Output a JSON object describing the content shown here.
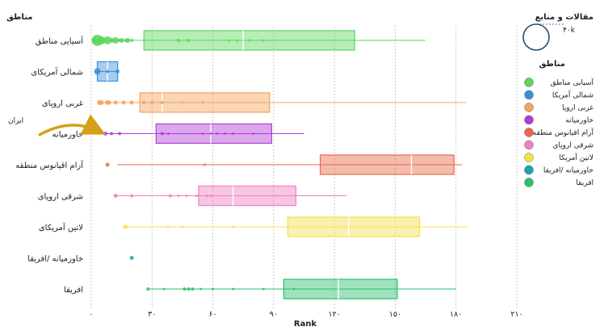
{
  "chart_data": {
    "type": "box",
    "title": "",
    "ylabel": "مناطق",
    "xlabel": "Rank",
    "xlim": [
      0,
      210
    ],
    "x_ticks": [
      0,
      30,
      60,
      90,
      120,
      150,
      180,
      210
    ],
    "x_tick_labels": [
      "۰",
      "۳۰",
      "۶۰",
      "۹۰",
      "۱۲۰",
      "۱۵۰",
      "۱۸۰",
      "۲۱۰"
    ],
    "grid": "vertical-dotted",
    "size_legend": {
      "title": "مقالات و منابع",
      "label": "۴۰k"
    },
    "color_legend": {
      "title": "مناطق",
      "placement": "right"
    },
    "annotation": {
      "text": "ایران",
      "arrow_color": "#d4a017",
      "target_region": "خاورمیانه",
      "target_rank": 7
    },
    "regions": [
      {
        "name": "آسیایی مناطق",
        "legend": "آسیایی مناطق",
        "color": "#5cd65c",
        "whisker_low": 1,
        "q1": 26,
        "median": 75,
        "q3": 130,
        "whisker_high": 165,
        "points": [
          [
            3,
            7
          ],
          [
            5,
            5
          ],
          [
            2,
            4
          ],
          [
            8,
            5
          ],
          [
            12,
            4
          ],
          [
            15,
            3
          ],
          [
            18,
            3
          ],
          [
            4,
            3
          ],
          [
            6,
            3
          ],
          [
            10,
            3
          ],
          [
            14,
            2
          ],
          [
            17,
            2
          ],
          [
            20,
            2
          ],
          [
            43,
            2
          ],
          [
            48,
            2
          ],
          [
            68,
            1.5
          ],
          [
            72,
            1.5
          ],
          [
            78,
            1.5
          ],
          [
            85,
            1.5
          ]
        ]
      },
      {
        "name": "شمالی آمریکای",
        "legend": "شمالی آمریکا",
        "color": "#3a8fd9",
        "whisker_low": 2,
        "q1": 3,
        "median": 8,
        "q3": 13,
        "whisker_high": 13,
        "points": [
          [
            3,
            4
          ],
          [
            13,
            2.5
          ],
          [
            8,
            2
          ]
        ]
      },
      {
        "name": "غربی اروپای",
        "legend": "غربی اروپا",
        "color": "#f5a25d",
        "whisker_low": 4,
        "q1": 24,
        "median": 35,
        "q3": 88,
        "whisker_high": 185,
        "points": [
          [
            5,
            3
          ],
          [
            8,
            3
          ],
          [
            12,
            2.5
          ],
          [
            16,
            2.5
          ],
          [
            20,
            2.5
          ],
          [
            4,
            3
          ],
          [
            9,
            2
          ],
          [
            26,
            2
          ],
          [
            30,
            2
          ],
          [
            35,
            2
          ],
          [
            45,
            1.5
          ],
          [
            55,
            1.5
          ]
        ]
      },
      {
        "name": "خاورمیانه",
        "legend": "خاورمیانه",
        "color": "#b03fd6",
        "whisker_low": 7,
        "q1": 32,
        "median": 59,
        "q3": 89,
        "whisker_high": 105,
        "points": [
          [
            7,
            2.5
          ],
          [
            10,
            2
          ],
          [
            14,
            2
          ],
          [
            35,
            2
          ],
          [
            38,
            1.5
          ],
          [
            55,
            1.5
          ],
          [
            59,
            1.5
          ],
          [
            62,
            1.5
          ],
          [
            66,
            1.5
          ],
          [
            70,
            1.5
          ],
          [
            80,
            1.5
          ]
        ]
      },
      {
        "name": "آرام اقیانوس منطقه",
        "legend": "آرام اقیانوس منطقه",
        "color": "#e8694a",
        "whisker_low": 13,
        "q1": 113,
        "median": 158,
        "q3": 179,
        "whisker_high": 183,
        "points": [
          [
            8,
            2.5
          ],
          [
            56,
            1.5
          ]
        ]
      },
      {
        "name": "شرقی اروپای",
        "legend": "شرقی اروپای",
        "color": "#ef7fc2",
        "whisker_low": 12,
        "q1": 53,
        "median": 70,
        "q3": 101,
        "whisker_high": 126,
        "points": [
          [
            12,
            2.5
          ],
          [
            20,
            2
          ],
          [
            39,
            2
          ],
          [
            43,
            1.5
          ],
          [
            47,
            1.5
          ],
          [
            52,
            1.5
          ],
          [
            57,
            1.5
          ],
          [
            59,
            1.5
          ]
        ]
      },
      {
        "name": "لاتین آمریکای",
        "legend": "لاتین آمریکا",
        "color": "#f2e04a",
        "whisker_low": 15,
        "q1": 97,
        "median": 127,
        "q3": 162,
        "whisker_high": 186,
        "points": [
          [
            17,
            2.5
          ],
          [
            38,
            1.5
          ],
          [
            45,
            1.5
          ],
          [
            70,
            1.5
          ]
        ]
      },
      {
        "name": "خاورمیانه /افریقا",
        "legend": "خاورمیانه /افریقا",
        "color": "#1aa6a6",
        "whisker_low": 20,
        "q1": 20,
        "median": 20,
        "q3": 20,
        "whisker_high": 20,
        "points": [
          [
            20,
            2.5
          ]
        ]
      },
      {
        "name": "افریقا",
        "legend": "افریقا",
        "color": "#2dbf6e",
        "whisker_low": 28,
        "q1": 95,
        "median": 122,
        "q3": 151,
        "whisker_high": 180,
        "points": [
          [
            28,
            2
          ],
          [
            36,
            1.5
          ],
          [
            46,
            2
          ],
          [
            48,
            2
          ],
          [
            50,
            2
          ],
          [
            54,
            1.5
          ],
          [
            60,
            1.5
          ],
          [
            70,
            1.5
          ],
          [
            85,
            1.5
          ],
          [
            100,
            1.5
          ]
        ]
      }
    ]
  }
}
